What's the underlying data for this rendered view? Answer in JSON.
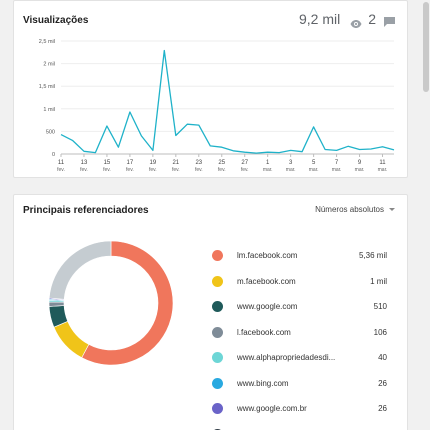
{
  "views_card": {
    "title": "Visualizações",
    "views_count": "9,2 mil",
    "comments_count": "2",
    "views_icon": "eye-icon",
    "comments_icon": "comment-icon"
  },
  "chart_data": {
    "type": "line",
    "title": "Visualizações",
    "color": "#1fb2c9",
    "ylim": [
      0,
      2500
    ],
    "yticks": [
      {
        "value": 0,
        "label": "0"
      },
      {
        "value": 500,
        "label": "500"
      },
      {
        "value": 1000,
        "label": "1 mil"
      },
      {
        "value": 1500,
        "label": "1,5 mil"
      },
      {
        "value": 2000,
        "label": "2 mil"
      },
      {
        "value": 2500,
        "label": "2,5 mil"
      }
    ],
    "x_start": "11 fev.",
    "xticks": [
      {
        "day": "11",
        "month": "fev.",
        "index": 0
      },
      {
        "day": "13",
        "month": "fev.",
        "index": 2
      },
      {
        "day": "15",
        "month": "fev.",
        "index": 4
      },
      {
        "day": "17",
        "month": "fev.",
        "index": 6
      },
      {
        "day": "19",
        "month": "fev.",
        "index": 8
      },
      {
        "day": "21",
        "month": "fev.",
        "index": 10
      },
      {
        "day": "23",
        "month": "fev.",
        "index": 12
      },
      {
        "day": "25",
        "month": "fev.",
        "index": 14
      },
      {
        "day": "27",
        "month": "fev.",
        "index": 16
      },
      {
        "day": "1",
        "month": "mar.",
        "index": 18
      },
      {
        "day": "3",
        "month": "mar.",
        "index": 20
      },
      {
        "day": "5",
        "month": "mar.",
        "index": 22
      },
      {
        "day": "7",
        "month": "mar.",
        "index": 24
      },
      {
        "day": "9",
        "month": "mar.",
        "index": 26
      },
      {
        "day": "11",
        "month": "mar.",
        "index": 28
      }
    ],
    "values": [
      430,
      300,
      60,
      30,
      620,
      150,
      930,
      400,
      80,
      2290,
      410,
      660,
      640,
      180,
      150,
      70,
      40,
      20,
      40,
      30,
      80,
      50,
      600,
      100,
      80,
      170,
      100,
      110,
      160,
      90
    ]
  },
  "referrers_card": {
    "title": "Principais referenciadores",
    "dropdown_label": "Números absolutos"
  },
  "referrers": [
    {
      "name": "lm.facebook.com",
      "value_label": "5,36 mil",
      "value": 5360,
      "color": "#f0765c"
    },
    {
      "name": "m.facebook.com",
      "value_label": "1 mil",
      "value": 1000,
      "color": "#f0c419"
    },
    {
      "name": "www.google.com",
      "value_label": "510",
      "value": 510,
      "color": "#1f5a5a"
    },
    {
      "name": "l.facebook.com",
      "value_label": "106",
      "value": 106,
      "color": "#7f8c98"
    },
    {
      "name": "www.alphapropriedadesdi...",
      "value_label": "40",
      "value": 40,
      "color": "#6dd6d6"
    },
    {
      "name": "www.bing.com",
      "value_label": "26",
      "value": 26,
      "color": "#29a9e0"
    },
    {
      "name": "www.google.com.br",
      "value_label": "26",
      "value": 26,
      "color": "#6a63c8"
    }
  ],
  "donut_other": {
    "value": 2200,
    "color": "#c5ccd1"
  }
}
